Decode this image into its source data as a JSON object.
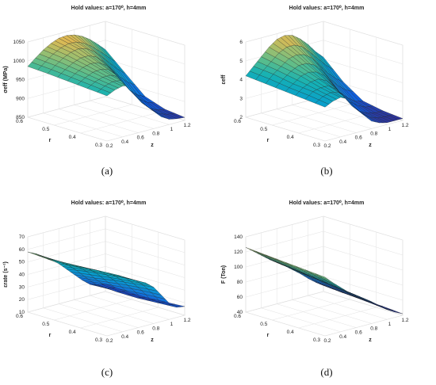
{
  "chart_data": [
    {
      "type": "surface",
      "title": "Hold values:  a=170⁰, h=4mm",
      "xlabel": "z",
      "ylabel": "r",
      "zlabel": "σeff (MPa)",
      "caption": "(a)",
      "x_ticks": [
        "0.2",
        "0.4",
        "0.6",
        "0.8",
        "1",
        "1.2"
      ],
      "y_ticks": [
        "0.3",
        "0.4",
        "0.5",
        "0.6"
      ],
      "z_ticks": [
        "850",
        "900",
        "950",
        "1000",
        "1050"
      ],
      "xlim": [
        0.2,
        1.2
      ],
      "ylim": [
        0.3,
        0.6
      ],
      "zlim": [
        850,
        1050
      ],
      "z_grid": [
        [
          985,
          1002,
          1018,
          1030,
          1038,
          1040,
          1036,
          1027,
          1013,
          995,
          975
        ],
        [
          982,
          998,
          1012,
          1022,
          1026,
          1021,
          1008,
          988,
          966,
          945,
          928
        ],
        [
          978,
          992,
          1003,
          1008,
          1005,
          992,
          968,
          938,
          910,
          892,
          882
        ],
        [
          974,
          986,
          993,
          993,
          984,
          962,
          928,
          898,
          878,
          868,
          864
        ],
        [
          970,
          980,
          985,
          981,
          966,
          938,
          902,
          876,
          864,
          860,
          858
        ]
      ],
      "colormap": "parula"
    },
    {
      "type": "surface",
      "title": "Hold values:  a=170⁰, h=4mm",
      "xlabel": "z",
      "ylabel": "r",
      "zlabel": "εeff",
      "caption": "(b)",
      "x_ticks": [
        "0.2",
        "0.4",
        "0.6",
        "0.8",
        "1",
        "1.2"
      ],
      "y_ticks": [
        "0.3",
        "0.4",
        "0.5",
        "0.6"
      ],
      "z_ticks": [
        "2",
        "3",
        "4",
        "5",
        "6"
      ],
      "xlim": [
        0.2,
        1.2
      ],
      "ylim": [
        0.3,
        0.6
      ],
      "zlim": [
        2,
        6
      ],
      "z_grid": [
        [
          4.2,
          4.6,
          5.0,
          5.4,
          5.7,
          5.8,
          5.7,
          5.4,
          5.0,
          4.5,
          4.1
        ],
        [
          4.1,
          4.5,
          4.8,
          5.1,
          5.2,
          5.1,
          4.8,
          4.3,
          3.8,
          3.4,
          3.1
        ],
        [
          4.0,
          4.3,
          4.6,
          4.7,
          4.6,
          4.3,
          3.8,
          3.2,
          2.8,
          2.5,
          2.4
        ],
        [
          3.9,
          4.2,
          4.3,
          4.3,
          4.0,
          3.5,
          2.9,
          2.5,
          2.3,
          2.2,
          2.2
        ],
        [
          3.8,
          4.0,
          4.1,
          3.9,
          3.5,
          2.9,
          2.4,
          2.2,
          2.1,
          2.1,
          2.1
        ]
      ],
      "colormap": "parula"
    },
    {
      "type": "surface",
      "title": "Hold values:  a=170⁰, h=4mm",
      "xlabel": "z",
      "ylabel": "r",
      "zlabel": "εrate (s⁻¹)",
      "caption": "(c)",
      "x_ticks": [
        "0.2",
        "0.4",
        "0.6",
        "0.8",
        "1",
        "1.2"
      ],
      "y_ticks": [
        "0.3",
        "0.4",
        "0.5",
        "0.6"
      ],
      "z_ticks": [
        "10",
        "20",
        "30",
        "40",
        "50",
        "60",
        "70"
      ],
      "xlim": [
        0.2,
        1.2
      ],
      "ylim": [
        0.3,
        0.6
      ],
      "zlim": [
        10,
        70
      ],
      "z_grid": [
        [
          58,
          55,
          51,
          47,
          42,
          36,
          30,
          24,
          19,
          17,
          16
        ],
        [
          57,
          54,
          51,
          48,
          44,
          39,
          32,
          26,
          20,
          16,
          15
        ],
        [
          56,
          53,
          51,
          49,
          46,
          41,
          35,
          28,
          21,
          16,
          15
        ],
        [
          55,
          53,
          51,
          49,
          47,
          43,
          37,
          30,
          22,
          17,
          16
        ],
        [
          54,
          52,
          50,
          49,
          47,
          44,
          39,
          31,
          23,
          18,
          17
        ]
      ],
      "colormap": "parula"
    },
    {
      "type": "surface",
      "title": "Hold values:  a=170⁰, h=4mm",
      "xlabel": "z",
      "ylabel": "r",
      "zlabel": "F (Ton)",
      "caption": "(d)",
      "x_ticks": [
        "0.2",
        "0.4",
        "0.6",
        "0.8",
        "1",
        "1.2"
      ],
      "y_ticks": [
        "0.3",
        "0.4",
        "0.5",
        "0.6"
      ],
      "z_ticks": [
        "40",
        "60",
        "80",
        "100",
        "120",
        "140"
      ],
      "xlim": [
        0.2,
        1.2
      ],
      "ylim": [
        0.3,
        0.6
      ],
      "zlim": [
        40,
        140
      ],
      "z_grid": [
        [
          126,
          118,
          110,
          102,
          95,
          88,
          80,
          72,
          63,
          55,
          48
        ],
        [
          124,
          116,
          107,
          99,
          92,
          85,
          78,
          70,
          61,
          53,
          46
        ],
        [
          122,
          113,
          104,
          96,
          89,
          82,
          75,
          67,
          59,
          51,
          45
        ],
        [
          120,
          111,
          102,
          93,
          86,
          79,
          72,
          64,
          56,
          49,
          44
        ],
        [
          118,
          108,
          99,
          90,
          83,
          76,
          69,
          61,
          53,
          47,
          42
        ]
      ],
      "colormap": "parula"
    }
  ]
}
